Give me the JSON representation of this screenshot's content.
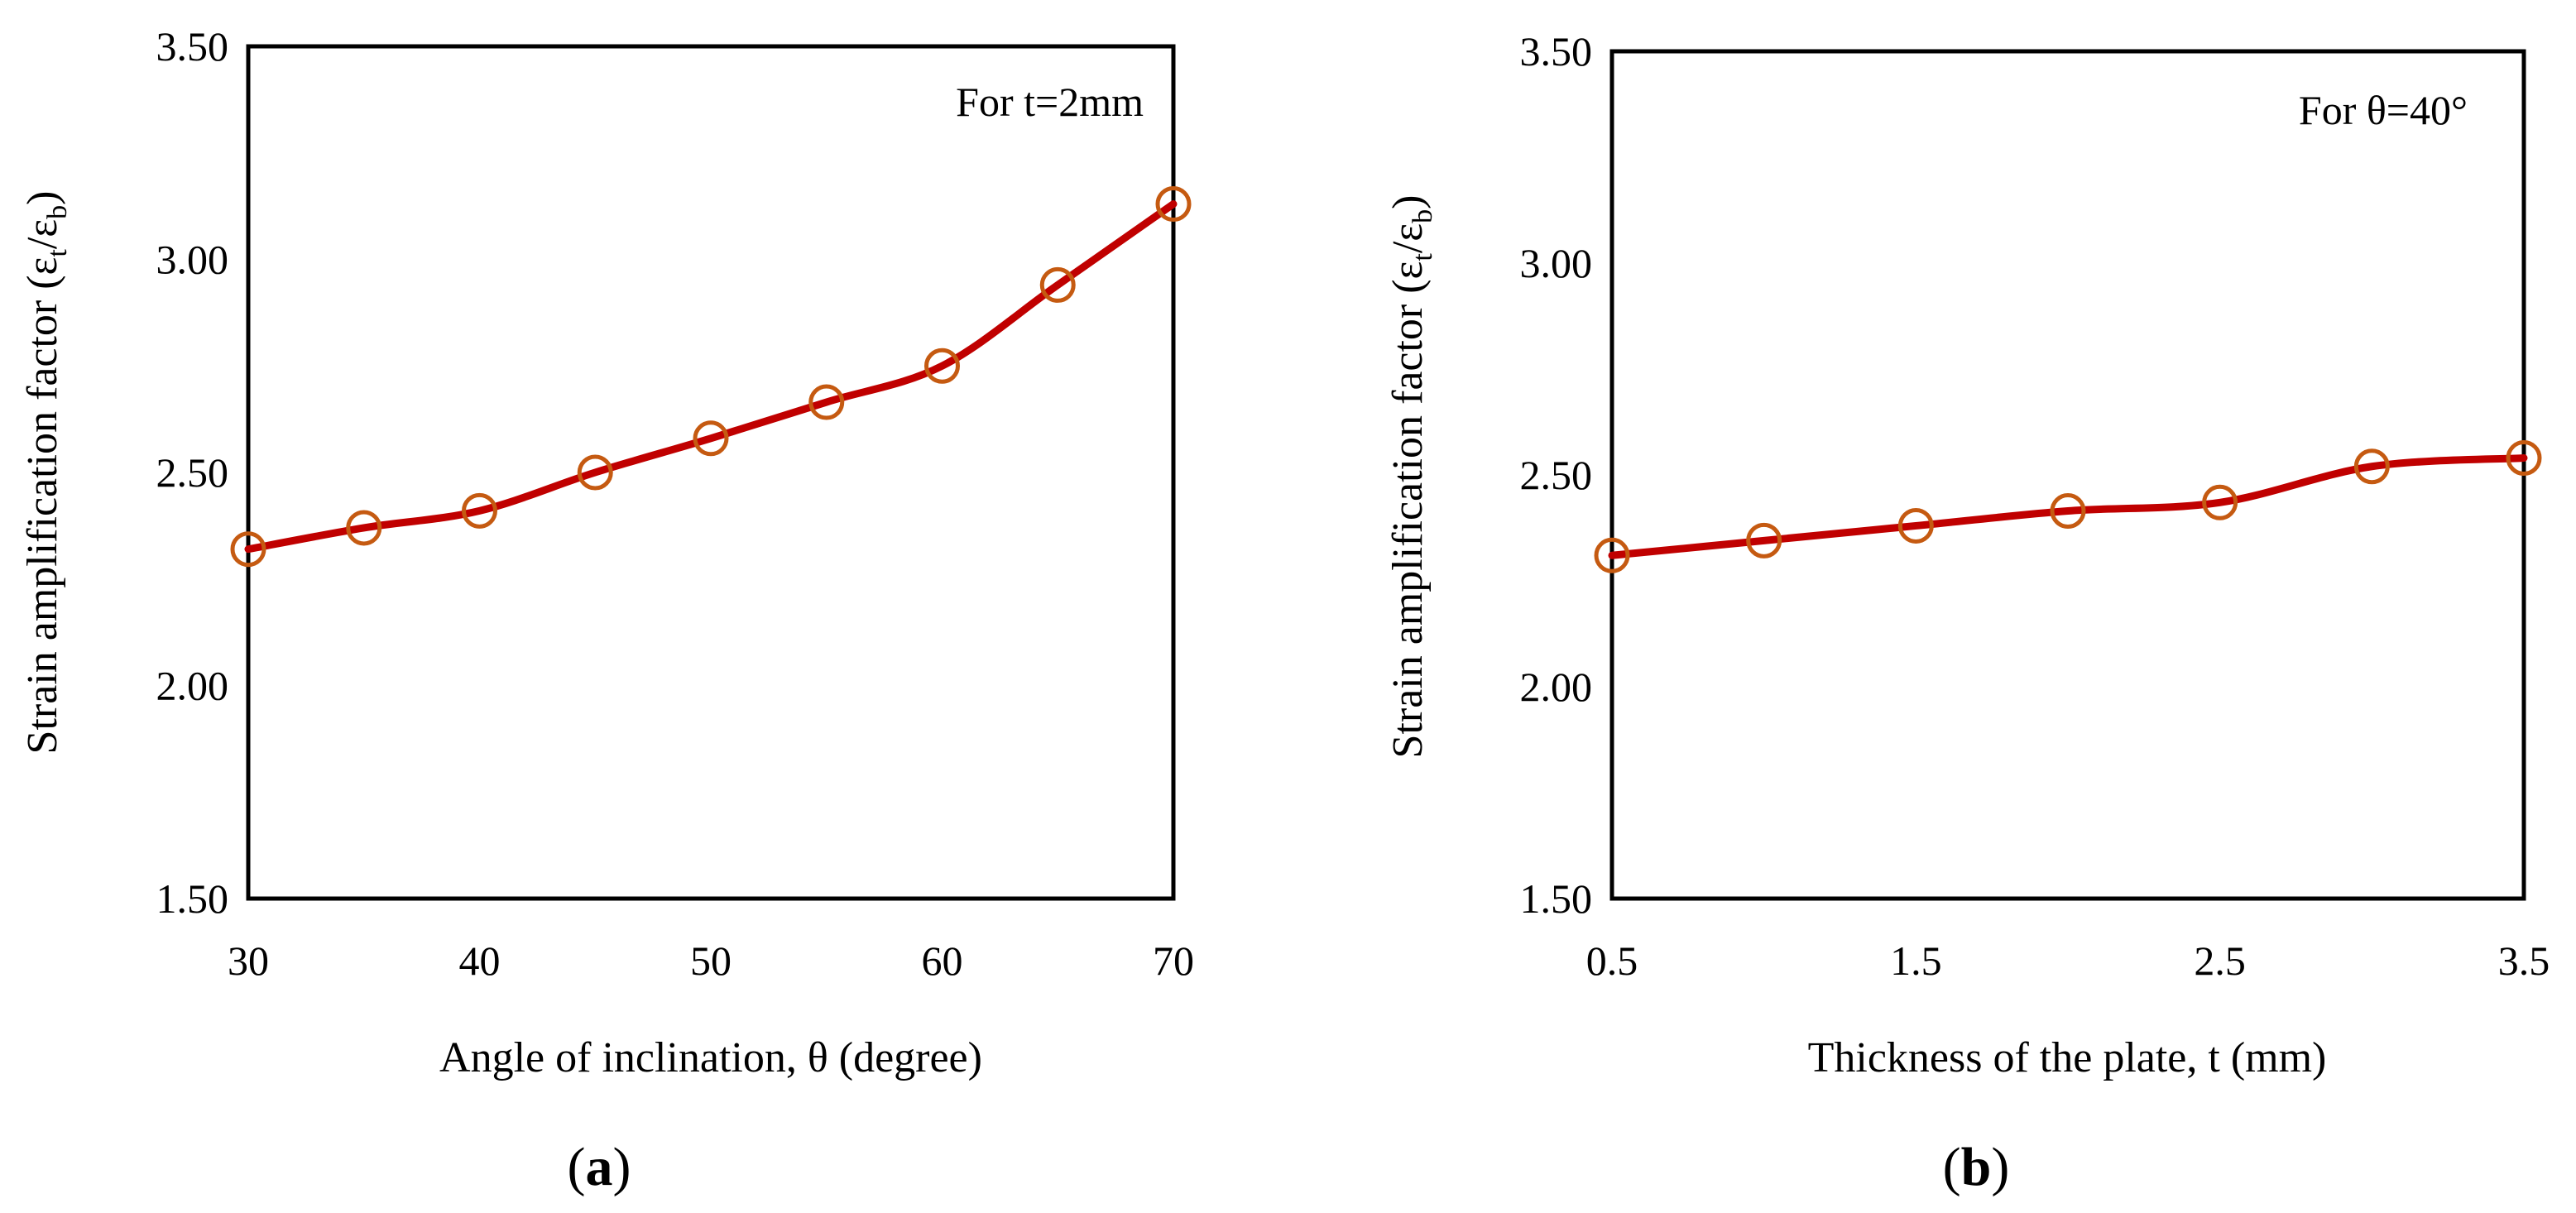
{
  "colors": {
    "line": "#C00000",
    "marker": "#C55A11"
  },
  "chart_data": [
    {
      "type": "line",
      "panel_label": "a",
      "x": [
        30,
        35,
        40,
        45,
        50,
        55,
        60,
        65,
        70
      ],
      "series": [
        {
          "name": "For t=2mm",
          "values": [
            2.32,
            2.37,
            2.41,
            2.5,
            2.58,
            2.665,
            2.75,
            2.94,
            3.13
          ]
        }
      ],
      "xlim": [
        30,
        70
      ],
      "ylim": [
        1.5,
        3.5
      ],
      "xticks": [
        "30",
        "40",
        "50",
        "60",
        "70"
      ],
      "xtick_values": [
        30,
        40,
        50,
        60,
        70
      ],
      "yticks": [
        "1.50",
        "2.00",
        "2.50",
        "3.00",
        "3.50"
      ],
      "ytick_values": [
        1.5,
        2.0,
        2.5,
        3.0,
        3.5
      ],
      "xlabel": "Angle of inclination, θ (degree)",
      "ylabel_main": "Strain amplification factor (ε",
      "ylabel_sub1": "t",
      "ylabel_mid": "/ε",
      "ylabel_sub2": "b",
      "ylabel_end": ")",
      "annotation": "For t=2mm",
      "grid": false
    },
    {
      "type": "line",
      "panel_label": "b",
      "x": [
        0.5,
        1.0,
        1.5,
        2.0,
        2.5,
        3.0,
        3.5
      ],
      "series": [
        {
          "name": "For θ=40°",
          "values": [
            2.31,
            2.345,
            2.38,
            2.415,
            2.435,
            2.52,
            2.54
          ]
        }
      ],
      "xlim": [
        0.5,
        3.5
      ],
      "ylim": [
        1.5,
        3.5
      ],
      "xticks": [
        "0.5",
        "1.5",
        "2.5",
        "3.5"
      ],
      "xtick_values": [
        0.5,
        1.5,
        2.5,
        3.5
      ],
      "yticks": [
        "1.50",
        "2.00",
        "2.50",
        "3.00",
        "3.50"
      ],
      "ytick_values": [
        1.5,
        2.0,
        2.5,
        3.0,
        3.5
      ],
      "xlabel": "Thickness of the plate, t (mm)",
      "ylabel_main": "Strain amplification factor (ε",
      "ylabel_sub1": "t",
      "ylabel_mid": "/ε",
      "ylabel_sub2": "b",
      "ylabel_end": ")",
      "annotation": "For θ=40°",
      "grid": false
    }
  ]
}
